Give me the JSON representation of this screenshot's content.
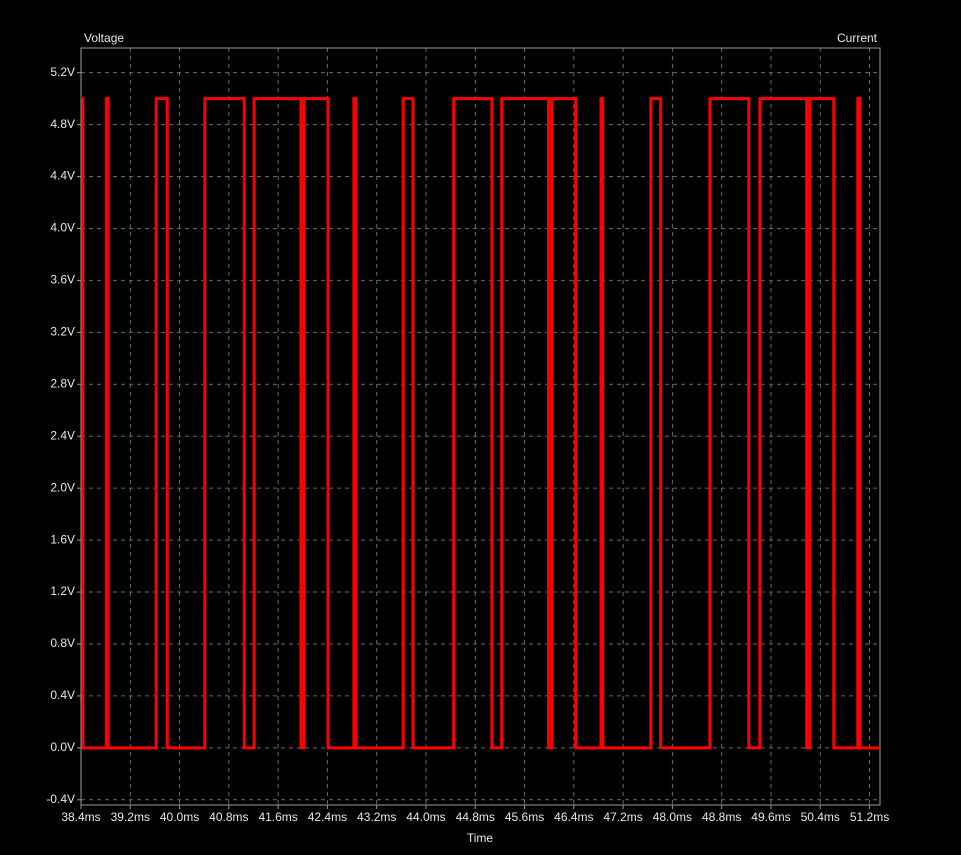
{
  "chart_data": {
    "type": "line",
    "y_label": "Voltage",
    "y2_label": "Current",
    "x_label": "Time",
    "color": "#ff0000",
    "x": [
      38.4,
      38.43,
      38.43,
      38.81,
      38.81,
      38.84,
      38.84,
      39.62,
      39.62,
      39.8,
      39.8,
      40.41,
      40.41,
      41.05,
      41.05,
      41.21,
      41.21,
      41.97,
      41.97,
      42.02,
      42.02,
      42.41,
      42.41,
      42.83,
      42.83,
      42.86,
      42.86,
      43.63,
      43.63,
      43.79,
      43.79,
      44.45,
      44.45,
      45.07,
      45.07,
      45.23,
      45.23,
      45.99,
      45.99,
      46.04,
      46.04,
      46.43,
      46.43,
      46.84,
      46.84,
      46.87,
      46.87,
      47.65,
      47.65,
      47.81,
      47.81,
      48.61,
      48.61,
      49.24,
      49.24,
      49.42,
      49.42,
      50.18,
      50.18,
      50.23,
      50.23,
      50.62,
      50.62,
      51.01,
      51.01,
      51.04,
      51.04,
      51.37
    ],
    "values": [
      5,
      5,
      0,
      0,
      5,
      5,
      0,
      0,
      5,
      5,
      0,
      0,
      5,
      5,
      0,
      0,
      5,
      5,
      0,
      0,
      5,
      5,
      0,
      0,
      5,
      5,
      0,
      0,
      5,
      5,
      0,
      0,
      5,
      5,
      0,
      0,
      5,
      5,
      0,
      0,
      5,
      5,
      0,
      0,
      5,
      5,
      0,
      0,
      5,
      5,
      0,
      0,
      5,
      5,
      0,
      0,
      5,
      5,
      0,
      0,
      5,
      5,
      0,
      0,
      5,
      5,
      0,
      0
    ],
    "xlim": [
      38.4,
      51.37
    ],
    "ylim": [
      -0.44,
      5.39
    ],
    "xticks": [
      {
        "value": 38.4,
        "label": "38.4ms"
      },
      {
        "value": 39.2,
        "label": "39.2ms"
      },
      {
        "value": 40.0,
        "label": "40.0ms"
      },
      {
        "value": 40.8,
        "label": "40.8ms"
      },
      {
        "value": 41.6,
        "label": "41.6ms"
      },
      {
        "value": 42.4,
        "label": "42.4ms"
      },
      {
        "value": 43.2,
        "label": "43.2ms"
      },
      {
        "value": 44.0,
        "label": "44.0ms"
      },
      {
        "value": 44.8,
        "label": "44.8ms"
      },
      {
        "value": 45.6,
        "label": "45.6ms"
      },
      {
        "value": 46.4,
        "label": "46.4ms"
      },
      {
        "value": 47.2,
        "label": "47.2ms"
      },
      {
        "value": 48.0,
        "label": "48.0ms"
      },
      {
        "value": 48.8,
        "label": "48.8ms"
      },
      {
        "value": 49.6,
        "label": "49.6ms"
      },
      {
        "value": 50.4,
        "label": "50.4ms"
      },
      {
        "value": 51.2,
        "label": "51.2ms"
      }
    ],
    "yticks": [
      {
        "value": -0.4,
        "label": "-0.4V"
      },
      {
        "value": 0,
        "label": "0.0V"
      },
      {
        "value": 0.4,
        "label": "0.4V"
      },
      {
        "value": 0.8,
        "label": "0.8V"
      },
      {
        "value": 1.2,
        "label": "1.2V"
      },
      {
        "value": 1.6,
        "label": "1.6V"
      },
      {
        "value": 2.0,
        "label": "2.0V"
      },
      {
        "value": 2.4,
        "label": "2.4V"
      },
      {
        "value": 2.8,
        "label": "2.8V"
      },
      {
        "value": 3.2,
        "label": "3.2V"
      },
      {
        "value": 3.6,
        "label": "3.6V"
      },
      {
        "value": 4.0,
        "label": "4.0V"
      },
      {
        "value": 4.4,
        "label": "4.4V"
      },
      {
        "value": 4.8,
        "label": "4.8V"
      },
      {
        "value": 5.2,
        "label": "5.2V"
      }
    ],
    "grid": true
  }
}
